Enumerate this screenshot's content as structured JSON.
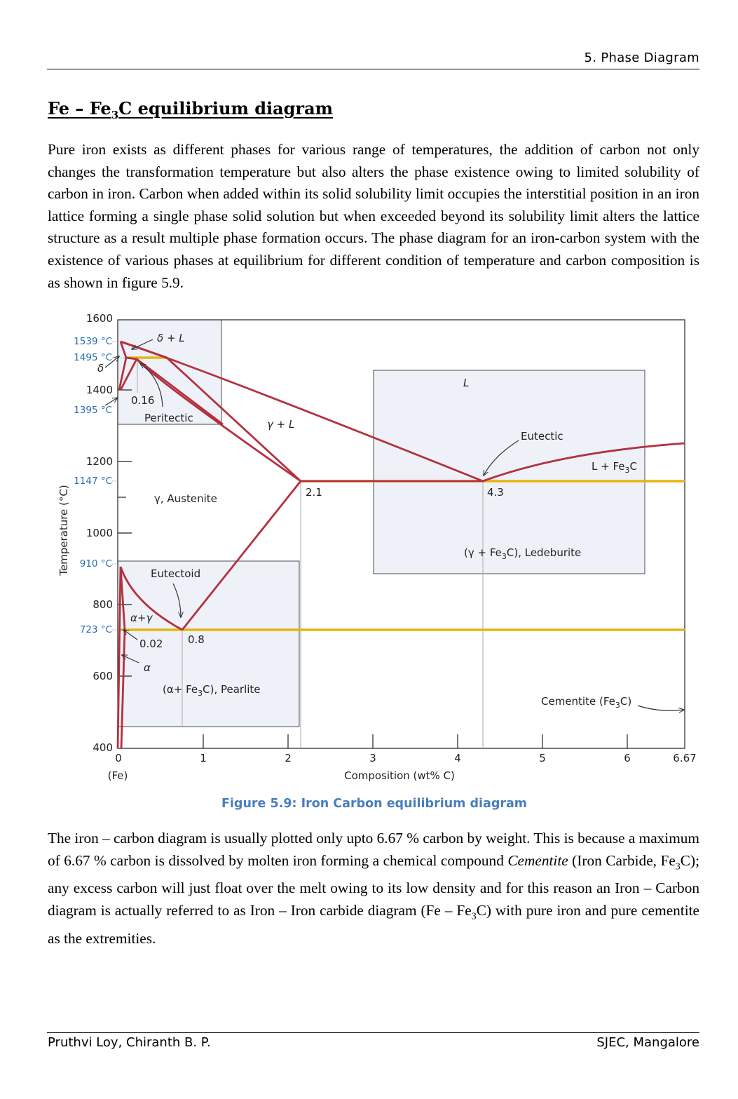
{
  "header": {
    "section": "5.   Phase Diagram"
  },
  "title_prefix": "Fe – Fe",
  "title_sub": "3",
  "title_suffix": "C equilibrium diagram",
  "paragraph1": "Pure iron exists as different phases for various range of temperatures, the addition of carbon not only changes the transformation temperature but also alters the phase existence owing to limited solubility of carbon in iron. Carbon when added within its solid solubility limit occupies the interstitial position in an iron lattice forming a single phase solid solution but when exceeded beyond its solubility limit alters the lattice structure as a result multiple phase formation occurs. The phase diagram for an iron-carbon system with the existence of various phases at equilibrium for different condition of temperature and carbon composition is as shown in figure 5.9.",
  "diagram": {
    "y_axis_label": "Temperature (°C)",
    "x_axis_label": "Composition (wt% C)",
    "x_ticks": [
      "0",
      "1",
      "2",
      "3",
      "4",
      "5",
      "6",
      "6.67"
    ],
    "y_ticks": [
      "1600",
      "1400",
      "1200",
      "1000",
      "800",
      "600",
      "400"
    ],
    "fe_label": "(Fe)",
    "special_temps": [
      "1539 °C",
      "1495 °C",
      "1395 °C",
      "1147 °C",
      "910 °C",
      "723 °C"
    ],
    "labels": {
      "delta_l": "δ + L",
      "delta": "δ",
      "c016": "0.16",
      "peritectic": "Peritectic",
      "gamma_l": "γ + L",
      "liquid": "L",
      "eutectic": "Eutectic",
      "l_fe3c": "L + Fe",
      "c21": "2.1",
      "c43": "4.3",
      "austenite": "γ, Austenite",
      "ledeburite": "(γ + Fe",
      "ledeburite_end": "C), Ledeburite",
      "eutectoid": "Eutectoid",
      "alpha_gamma": "α+γ",
      "c002": "0.02",
      "c08": "0.8",
      "alpha": "α",
      "pearlite": "(α+ Fe",
      "pearlite_end": "C), Pearlite",
      "cementite": "Cementite (Fe",
      "cementite_end": "C)",
      "sub3": "3"
    },
    "colors": {
      "phase_line": "#b5303f",
      "isotherm": "#e8b40f",
      "box_fill": "#eef2f8",
      "temp_label": "#2b6cb0"
    }
  },
  "caption": "Figure 5.9: Iron Carbon equilibrium diagram",
  "paragraph2": {
    "part1": "The iron – carbon diagram is usually plotted only upto 6.67 % carbon by weight. This is because a maximum of 6.67 % carbon is dissolved by molten iron forming a chemical compound ",
    "italic": "Cementite",
    "part2": " (Iron Carbide, Fe",
    "sub": "3",
    "part3": "C); any excess carbon will just float over the melt owing to its low density and for this reason an Iron – Carbon diagram is actually referred to as Iron – Iron carbide diagram (Fe – Fe",
    "sub2": "3",
    "part4": "C) with pure iron and pure cementite as the extremities."
  },
  "footer": {
    "left": "Pruthvi Loy, Chiranth B. P.",
    "right": "SJEC, Mangalore"
  }
}
